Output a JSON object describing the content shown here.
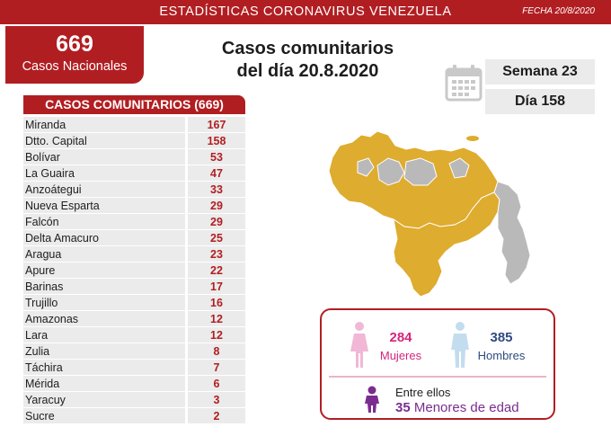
{
  "header": {
    "title": "ESTADÍSTICAS CORONAVIRUS VENEZUELA",
    "date": "FECHA 20/8/2020"
  },
  "national": {
    "count": "669",
    "label": "Casos Nacionales"
  },
  "heading": {
    "line1": "Casos comunitarios",
    "line2": "del día 20.8.2020"
  },
  "period": {
    "week": "Semana 23",
    "day": "Día 158"
  },
  "table": {
    "title": "CASOS COMUNITARIOS (669)",
    "rows": [
      {
        "state": "Miranda",
        "cases": "167"
      },
      {
        "state": "Dtto. Capital",
        "cases": "158"
      },
      {
        "state": "Bolívar",
        "cases": "53"
      },
      {
        "state": "La Guaira",
        "cases": "47"
      },
      {
        "state": "Anzoátegui",
        "cases": "33"
      },
      {
        "state": "Nueva Esparta",
        "cases": "29"
      },
      {
        "state": "Falcón",
        "cases": "29"
      },
      {
        "state": "Delta Amacuro",
        "cases": "25"
      },
      {
        "state": "Aragua",
        "cases": "23"
      },
      {
        "state": "Apure",
        "cases": "22"
      },
      {
        "state": "Barinas",
        "cases": "17"
      },
      {
        "state": "Trujillo",
        "cases": "16"
      },
      {
        "state": "Amazonas",
        "cases": "12"
      },
      {
        "state": "Lara",
        "cases": "12"
      },
      {
        "state": "Zulia",
        "cases": "8"
      },
      {
        "state": "Táchira",
        "cases": "7"
      },
      {
        "state": "Mérida",
        "cases": "6"
      },
      {
        "state": "Yaracuy",
        "cases": "3"
      },
      {
        "state": "Sucre",
        "cases": "2"
      }
    ]
  },
  "gender": {
    "female_count": "284",
    "female_label": "Mujeres",
    "male_count": "385",
    "male_label": "Hombres",
    "minors_prefix": "Entre ellos",
    "minors_count": "35",
    "minors_label": "Menores de edad"
  },
  "colors": {
    "brand_red": "#b11e22",
    "map_highlight": "#deac2e",
    "map_other": "#b9b9b9",
    "female": "#d6257c",
    "male": "#2f4a80",
    "minors": "#7a2d8f"
  },
  "icons": {
    "calendar": "calendar-icon",
    "female": "female-person-icon",
    "male": "male-person-icon",
    "child": "child-icon"
  }
}
